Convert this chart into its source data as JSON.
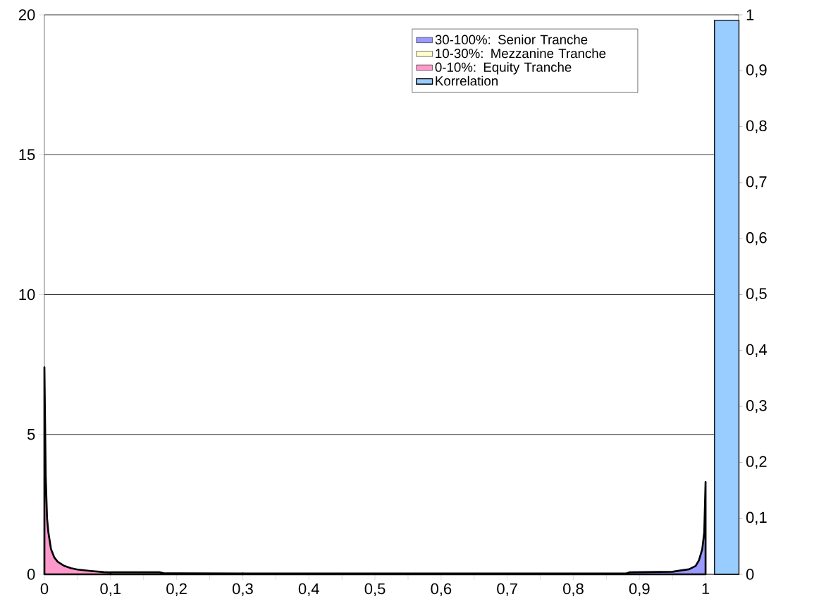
{
  "chart_data": {
    "type": "area",
    "series": [
      {
        "name": "30-100%: Senior Tranche",
        "color": "#9999ff",
        "x": [
          0.3,
          0.5,
          0.7,
          0.88,
          0.885,
          0.95,
          0.96,
          0.975,
          0.985,
          0.99,
          0.995,
          0.998,
          1.0
        ],
        "values": [
          0.03,
          0.03,
          0.03,
          0.03,
          0.07,
          0.09,
          0.13,
          0.18,
          0.3,
          0.5,
          0.9,
          1.5,
          3.3
        ]
      },
      {
        "name": "10-30%: Mezzanine Tranche",
        "color": "#ffffcc",
        "x": [
          0.1,
          0.175,
          0.18,
          0.3
        ],
        "values": [
          0.07,
          0.07,
          0.04,
          0.03
        ]
      },
      {
        "name": "0-10%: Equity Tranche",
        "color": "#ff99cc",
        "x": [
          0,
          0.002,
          0.004,
          0.006,
          0.01,
          0.015,
          0.02,
          0.03,
          0.04,
          0.05,
          0.07,
          0.09,
          0.1
        ],
        "values": [
          7.4,
          3.5,
          2.0,
          1.5,
          0.9,
          0.6,
          0.45,
          0.3,
          0.22,
          0.17,
          0.12,
          0.08,
          0.07
        ]
      },
      {
        "name": "Korrelation",
        "type": "bar",
        "axis": "y2",
        "color": "#99ccff",
        "x": [
          1.032
        ],
        "values": [
          0.99
        ]
      }
    ],
    "xlim": [
      0,
      1.05
    ],
    "xticks": [
      {
        "value": 0,
        "label": "0"
      },
      {
        "value": 0.05,
        "label": null
      },
      {
        "value": 0.1,
        "label": "0,1"
      },
      {
        "value": 0.15,
        "label": null
      },
      {
        "value": 0.2,
        "label": "0,2"
      },
      {
        "value": 0.25,
        "label": null
      },
      {
        "value": 0.3,
        "label": "0,3"
      },
      {
        "value": 0.35,
        "label": null
      },
      {
        "value": 0.4,
        "label": "0,4"
      },
      {
        "value": 0.45,
        "label": null
      },
      {
        "value": 0.5,
        "label": "0,5"
      },
      {
        "value": 0.55,
        "label": null
      },
      {
        "value": 0.6,
        "label": "0,6"
      },
      {
        "value": 0.65,
        "label": null
      },
      {
        "value": 0.7,
        "label": "0,7"
      },
      {
        "value": 0.75,
        "label": null
      },
      {
        "value": 0.8,
        "label": "0,8"
      },
      {
        "value": 0.85,
        "label": null
      },
      {
        "value": 0.9,
        "label": "0,9"
      },
      {
        "value": 0.95,
        "label": null
      },
      {
        "value": 1.0,
        "label": "1"
      }
    ],
    "ylim": [
      0,
      20
    ],
    "yticks": [
      0,
      5,
      10,
      15,
      20
    ],
    "y2lim": [
      0,
      1
    ],
    "y2ticks": [
      0,
      {
        "value": 0.1,
        "label": "0,1"
      },
      {
        "value": 0.2,
        "label": "0,2"
      },
      {
        "value": 0.3,
        "label": "0,3"
      },
      {
        "value": 0.4,
        "label": "0,4"
      },
      {
        "value": 0.5,
        "label": "0,5"
      },
      {
        "value": 0.6,
        "label": "0,6"
      },
      {
        "value": 0.7,
        "label": "0,7"
      },
      {
        "value": 0.8,
        "label": "0,8"
      },
      {
        "value": 0.9,
        "label": "0,9"
      },
      1
    ],
    "grid": "y",
    "legend": "top right"
  }
}
